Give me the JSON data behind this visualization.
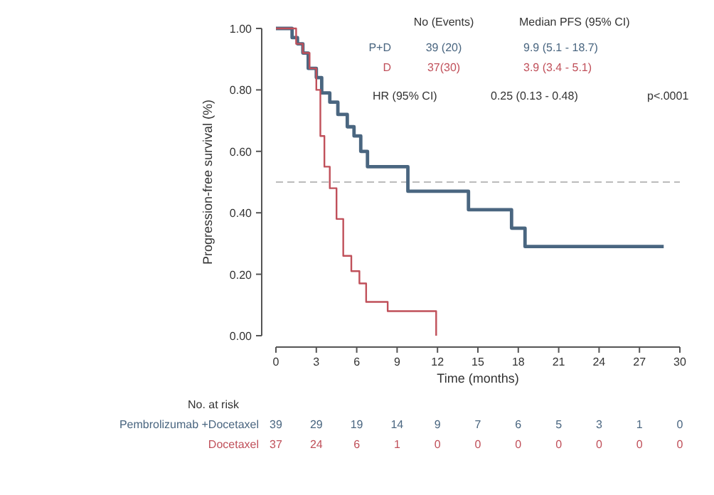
{
  "chart_data": {
    "type": "step",
    "xlabel": "Time (months)",
    "ylabel": "Progression-free survival (%)",
    "xlim": [
      0,
      30
    ],
    "xticks": [
      0,
      3,
      6,
      9,
      12,
      15,
      18,
      21,
      24,
      27,
      30
    ],
    "ylim": [
      0,
      1
    ],
    "yticks": [
      {
        "value": 0,
        "label": "0.00"
      },
      {
        "value": 0.2,
        "label": "0.20"
      },
      {
        "value": 0.4,
        "label": "0.40"
      },
      {
        "value": 0.6,
        "label": "0.60"
      },
      {
        "value": 0.8,
        "label": "0.80"
      },
      {
        "value": 1,
        "label": "1.00"
      }
    ],
    "legend": "top left",
    "grid": false,
    "series": [
      {
        "name": "P+D",
        "color": "#4a6680",
        "x": [
          0,
          1.2,
          1.6,
          2.0,
          2.4,
          3.0,
          3.4,
          4.0,
          4.6,
          5.3,
          5.8,
          6.3,
          6.8,
          9.8,
          14.3,
          17.5,
          18.5,
          28.8
        ],
        "values": [
          1,
          0.97,
          0.95,
          0.92,
          0.87,
          0.84,
          0.79,
          0.76,
          0.72,
          0.68,
          0.65,
          0.6,
          0.55,
          0.47,
          0.41,
          0.35,
          0.29,
          0.29
        ]
      },
      {
        "name": "D",
        "color": "#c0505a",
        "x": [
          0,
          1.5,
          2.0,
          2.5,
          3.0,
          3.3,
          3.6,
          4.0,
          4.5,
          5.0,
          5.6,
          6.2,
          6.7,
          8.3,
          11.9,
          11.9
        ],
        "values": [
          1,
          0.95,
          0.92,
          0.87,
          0.8,
          0.65,
          0.55,
          0.48,
          0.38,
          0.26,
          0.21,
          0.17,
          0.11,
          0.08,
          0.08,
          0
        ]
      }
    ],
    "ref_lines": [
      {
        "axis": "y",
        "value": 0.5,
        "color": "#bbbbbb",
        "line_style": "dashed"
      }
    ],
    "annotations": [
      "No (Events)",
      "Median PFS (95% CI)",
      "39 (20)",
      "9.9 (5.1 - 18.7)",
      "37(30)",
      "3.9 (3.4 - 5.1)",
      "HR (95% CI)",
      "0.25 (0.13 - 0.48)",
      "p<.0001",
      "No. at risk",
      "Pembrolizumab +Docetaxel",
      "Docetaxel",
      "39 29 19 14 9 7 6 5 3 1 0",
      "37 24 6 1 0 0 0 0 0 0 0"
    ]
  }
}
